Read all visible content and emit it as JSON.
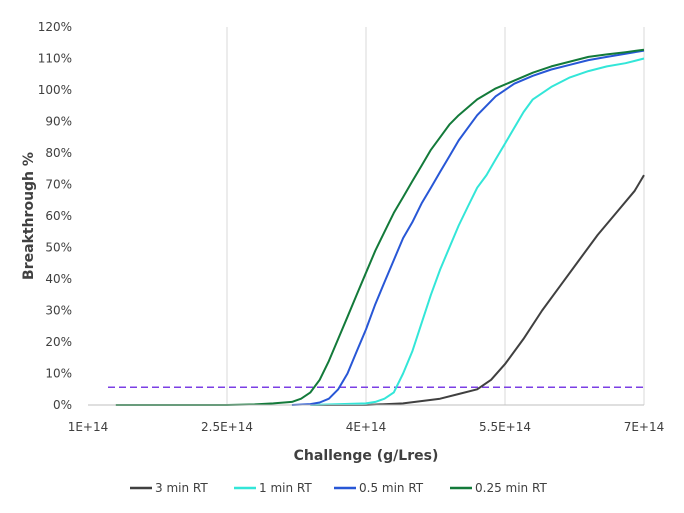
{
  "chart_data": {
    "type": "line",
    "title": "",
    "xlabel": "Challenge (g/Lres)",
    "ylabel": "Breakthrough %",
    "xlim": [
      100000000000000,
      700000000000000
    ],
    "ylim": [
      0,
      120
    ],
    "x_ticks": [
      100000000000000,
      250000000000000,
      400000000000000,
      550000000000000,
      700000000000000
    ],
    "x_tick_labels": [
      "1E+14",
      "2.5E+14",
      "4E+14",
      "5.5E+14",
      "7E+14"
    ],
    "y_ticks": [
      0,
      10,
      20,
      30,
      40,
      50,
      60,
      70,
      80,
      90,
      100,
      110,
      120
    ],
    "y_tick_labels": [
      "0%",
      "10%",
      "20%",
      "30%",
      "40%",
      "50%",
      "60%",
      "70%",
      "80%",
      "90%",
      "100%",
      "110%",
      "120%"
    ],
    "grid": "vertical",
    "legend_position": "bottom",
    "reference_line": {
      "y": 5,
      "color": "#7b3fe4",
      "style": "dashed"
    },
    "series": [
      {
        "name": "3 min RT",
        "color": "#404040",
        "points": [
          [
            340000000000000,
            0
          ],
          [
            400000000000000,
            0
          ],
          [
            440000000000000,
            0.5
          ],
          [
            480000000000000,
            2
          ],
          [
            500000000000000,
            3.5
          ],
          [
            520000000000000,
            5
          ],
          [
            535000000000000,
            8
          ],
          [
            550000000000000,
            13
          ],
          [
            570000000000000,
            21
          ],
          [
            590000000000000,
            30
          ],
          [
            610000000000000,
            38
          ],
          [
            630000000000000,
            46
          ],
          [
            650000000000000,
            54
          ],
          [
            670000000000000,
            61
          ],
          [
            690000000000000,
            68
          ],
          [
            700000000000000,
            73
          ]
        ]
      },
      {
        "name": "1 min RT",
        "color": "#33e6d8",
        "points": [
          [
            340000000000000,
            0
          ],
          [
            400000000000000,
            0.5
          ],
          [
            410000000000000,
            1
          ],
          [
            420000000000000,
            2
          ],
          [
            430000000000000,
            4
          ],
          [
            440000000000000,
            10
          ],
          [
            450000000000000,
            17
          ],
          [
            460000000000000,
            26
          ],
          [
            470000000000000,
            35
          ],
          [
            480000000000000,
            43
          ],
          [
            490000000000000,
            50
          ],
          [
            500000000000000,
            57
          ],
          [
            510000000000000,
            63
          ],
          [
            520000000000000,
            69
          ],
          [
            530000000000000,
            73
          ],
          [
            540000000000000,
            78
          ],
          [
            550000000000000,
            83
          ],
          [
            560000000000000,
            88
          ],
          [
            570000000000000,
            93
          ],
          [
            580000000000000,
            97
          ],
          [
            600000000000000,
            101
          ],
          [
            620000000000000,
            104
          ],
          [
            640000000000000,
            106
          ],
          [
            660000000000000,
            107.5
          ],
          [
            680000000000000,
            108.5
          ],
          [
            700000000000000,
            110
          ]
        ]
      },
      {
        "name": "0.5 min RT",
        "color": "#2857d6",
        "points": [
          [
            320000000000000,
            0
          ],
          [
            340000000000000,
            0.3
          ],
          [
            350000000000000,
            0.8
          ],
          [
            360000000000000,
            2
          ],
          [
            370000000000000,
            5
          ],
          [
            380000000000000,
            10
          ],
          [
            390000000000000,
            17
          ],
          [
            400000000000000,
            24
          ],
          [
            410000000000000,
            32
          ],
          [
            420000000000000,
            39
          ],
          [
            430000000000000,
            46
          ],
          [
            440000000000000,
            53
          ],
          [
            450000000000000,
            58
          ],
          [
            460000000000000,
            64
          ],
          [
            470000000000000,
            69
          ],
          [
            480000000000000,
            74
          ],
          [
            490000000000000,
            79
          ],
          [
            500000000000000,
            84
          ],
          [
            510000000000000,
            88
          ],
          [
            520000000000000,
            92
          ],
          [
            540000000000000,
            98
          ],
          [
            560000000000000,
            102
          ],
          [
            580000000000000,
            104.5
          ],
          [
            600000000000000,
            106.5
          ],
          [
            620000000000000,
            108
          ],
          [
            640000000000000,
            109.5
          ],
          [
            660000000000000,
            110.5
          ],
          [
            680000000000000,
            111.5
          ],
          [
            700000000000000,
            112.5
          ]
        ]
      },
      {
        "name": "0.25 min RT",
        "color": "#137a3a",
        "points": [
          [
            130000000000000,
            0
          ],
          [
            250000000000000,
            0
          ],
          [
            280000000000000,
            0.2
          ],
          [
            300000000000000,
            0.5
          ],
          [
            320000000000000,
            1
          ],
          [
            330000000000000,
            2
          ],
          [
            340000000000000,
            4
          ],
          [
            350000000000000,
            8
          ],
          [
            360000000000000,
            14
          ],
          [
            370000000000000,
            21
          ],
          [
            380000000000000,
            28
          ],
          [
            390000000000000,
            35
          ],
          [
            400000000000000,
            42
          ],
          [
            410000000000000,
            49
          ],
          [
            420000000000000,
            55
          ],
          [
            430000000000000,
            61
          ],
          [
            440000000000000,
            66
          ],
          [
            450000000000000,
            71
          ],
          [
            460000000000000,
            76
          ],
          [
            470000000000000,
            81
          ],
          [
            480000000000000,
            85
          ],
          [
            490000000000000,
            89
          ],
          [
            500000000000000,
            92
          ],
          [
            520000000000000,
            97
          ],
          [
            540000000000000,
            100.5
          ],
          [
            560000000000000,
            103
          ],
          [
            580000000000000,
            105.5
          ],
          [
            600000000000000,
            107.5
          ],
          [
            620000000000000,
            109
          ],
          [
            640000000000000,
            110.5
          ],
          [
            660000000000000,
            111.3
          ],
          [
            680000000000000,
            112
          ],
          [
            700000000000000,
            112.8
          ]
        ]
      }
    ]
  }
}
